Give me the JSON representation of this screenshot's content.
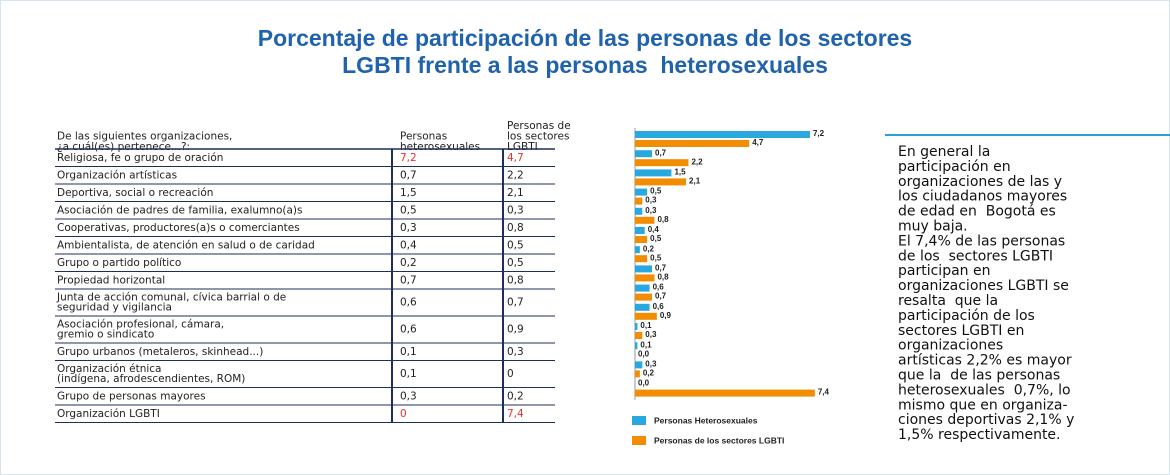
{
  "title": [
    "Porcentaje de participación de las personas de los sectores",
    "LGBTI frente a las personas  heterosexuales"
  ],
  "table": {
    "header": [
      [
        "De las siguientes organizaciones,",
        "¿a cuál(es) pertenece...?:"
      ],
      [
        "Personas",
        "heterosexuales"
      ],
      [
        "Personas de",
        "los sectores",
        "LGBTI"
      ]
    ],
    "highlight_color": "#e8312f",
    "highlight_rows": [
      0,
      13
    ],
    "rows": [
      [
        [
          "Religiosa, fe o grupo de oración"
        ],
        "7,2",
        "4,7"
      ],
      [
        [
          "Organización artísticas"
        ],
        "0,7",
        "2,2"
      ],
      [
        [
          "Deportiva, social o recreación"
        ],
        "1,5",
        "2,1"
      ],
      [
        [
          "Asociación de padres de familia, exalumno(a)s"
        ],
        "0,5",
        "0,3"
      ],
      [
        [
          "Cooperativas, productores(a)s o comerciantes"
        ],
        "0,3",
        "0,8"
      ],
      [
        [
          "Ambientalista, de atención en salud o de caridad"
        ],
        "0,4",
        "0,5"
      ],
      [
        [
          "Grupo o partido político"
        ],
        "0,2",
        "0,5"
      ],
      [
        [
          "Propiedad horizontal"
        ],
        "0,7",
        "0,8"
      ],
      [
        [
          "Junta de acción comunal, cívica barrial o de",
          "seguridad y vigilancia"
        ],
        "0,6",
        "0,7"
      ],
      [
        [
          "Asociación profesional, cámara,",
          "gremio o sindicato"
        ],
        "0,6",
        "0,9"
      ],
      [
        [
          "Grupo urbanos (metaleros, skinhead...)"
        ],
        "0,1",
        "0,3"
      ],
      [
        [
          "Organización étnica",
          "(indígena, afrodescendientes, ROM)"
        ],
        "0,1",
        "0"
      ],
      [
        [
          "Grupo de personas mayores"
        ],
        "0,3",
        "0,2"
      ],
      [
        [
          "Organización LGBTI"
        ],
        "0",
        "7,4"
      ]
    ]
  },
  "chart_data": {
    "type": "bar",
    "orientation": "horizontal",
    "categories": [
      null,
      null,
      null,
      null,
      null,
      null,
      null,
      null,
      null,
      null,
      null,
      null,
      null,
      null
    ],
    "series": [
      {
        "name": "Personas Heterosexuales",
        "color": "#29a8e0",
        "values": [
          7.2,
          0.7,
          1.5,
          0.5,
          0.3,
          0.4,
          0.2,
          0.7,
          0.6,
          0.6,
          0.1,
          0.1,
          0.3,
          0.0
        ],
        "value_labels": [
          "7,2",
          "0,7",
          "1,5",
          "0,5",
          "0,3",
          "0,4",
          "0,2",
          "0,7",
          "0,6",
          "0,6",
          "0,1",
          "0,1",
          "0,3",
          "0,0"
        ]
      },
      {
        "name": "Personas de los sectores LGBTI",
        "color": "#f28c00",
        "values": [
          4.7,
          2.2,
          2.1,
          0.3,
          0.8,
          0.5,
          0.5,
          0.8,
          0.7,
          0.9,
          0.3,
          0.0,
          0.2,
          7.4
        ],
        "value_labels": [
          "4,7",
          "2,2",
          "2,1",
          "0,3",
          "0,8",
          "0,5",
          "0,5",
          "0,8",
          "0,7",
          "0,9",
          "0,3",
          "0,0",
          "0,2",
          "7,4"
        ]
      }
    ]
  },
  "text": [
    "En general la",
    "participación en",
    "organizaciones de las y",
    "los ciudadanos mayores",
    "de edad en  Bogotá es",
    "muy baja.",
    "El 7,4% de las personas",
    "de los  sectores LGBTI",
    "participan en",
    "organizaciones LGBTI se",
    "resalta  que la",
    "participación de los",
    "sectores LGBTI en",
    "organizaciones",
    "artísticas 2,2% es mayor",
    "que la  de las personas",
    "heterosexuales  0,7%, lo",
    "mismo que en organiza-",
    "ciones deportivas 2,1% y",
    "1,5% respectivamente."
  ]
}
